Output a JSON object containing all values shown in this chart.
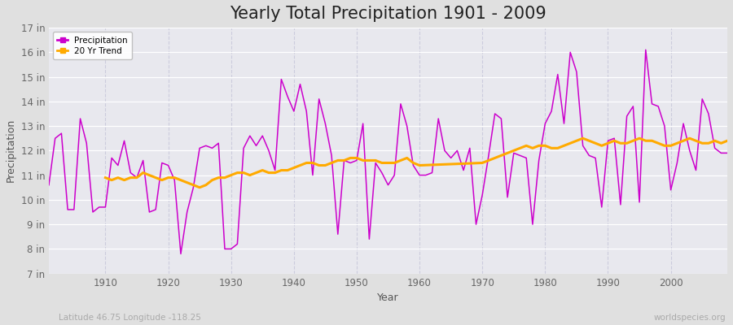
{
  "title": "Yearly Total Precipitation 1901 - 2009",
  "xlabel": "Year",
  "ylabel": "Precipitation",
  "subtitle": "Latitude 46.75 Longitude -118.25",
  "watermark": "worldspecies.org",
  "years": [
    1901,
    1902,
    1903,
    1904,
    1905,
    1906,
    1907,
    1908,
    1909,
    1910,
    1911,
    1912,
    1913,
    1914,
    1915,
    1916,
    1917,
    1918,
    1919,
    1920,
    1921,
    1922,
    1923,
    1924,
    1925,
    1926,
    1927,
    1928,
    1929,
    1930,
    1931,
    1932,
    1933,
    1934,
    1935,
    1936,
    1937,
    1938,
    1939,
    1940,
    1941,
    1942,
    1943,
    1944,
    1945,
    1946,
    1947,
    1948,
    1949,
    1950,
    1951,
    1952,
    1953,
    1954,
    1955,
    1956,
    1957,
    1958,
    1959,
    1960,
    1961,
    1962,
    1963,
    1964,
    1965,
    1966,
    1967,
    1968,
    1969,
    1970,
    1971,
    1972,
    1973,
    1974,
    1975,
    1976,
    1977,
    1978,
    1979,
    1980,
    1981,
    1982,
    1983,
    1984,
    1985,
    1986,
    1987,
    1988,
    1989,
    1990,
    1991,
    1992,
    1993,
    1994,
    1995,
    1996,
    1997,
    1998,
    1999,
    2000,
    2001,
    2002,
    2003,
    2004,
    2005,
    2006,
    2007,
    2008,
    2009
  ],
  "precip": [
    10.6,
    12.5,
    12.7,
    9.6,
    9.6,
    13.3,
    12.3,
    9.5,
    9.7,
    9.7,
    11.7,
    11.4,
    12.4,
    11.1,
    10.9,
    11.6,
    9.5,
    9.6,
    11.5,
    11.4,
    10.8,
    7.8,
    9.5,
    10.5,
    12.1,
    12.2,
    12.1,
    12.3,
    8.0,
    8.0,
    8.2,
    12.1,
    12.6,
    12.2,
    12.6,
    12.0,
    11.2,
    14.9,
    14.2,
    13.6,
    14.7,
    13.6,
    11.0,
    14.1,
    13.1,
    11.8,
    8.6,
    11.6,
    11.5,
    11.6,
    13.1,
    8.4,
    11.5,
    11.1,
    10.6,
    11.0,
    13.9,
    13.0,
    11.4,
    11.0,
    11.0,
    11.1,
    13.3,
    12.0,
    11.7,
    12.0,
    11.2,
    12.1,
    9.0,
    10.2,
    11.8,
    13.5,
    13.3,
    10.1,
    11.9,
    11.8,
    11.7,
    9.0,
    11.6,
    13.1,
    13.6,
    15.1,
    13.1,
    16.0,
    15.2,
    12.2,
    11.8,
    11.7,
    9.7,
    12.4,
    12.5,
    9.8,
    13.4,
    13.8,
    9.9,
    16.1,
    13.9,
    13.8,
    13.0,
    10.4,
    11.5,
    13.1,
    12.0,
    11.2,
    14.1,
    13.5,
    12.1,
    11.9,
    11.9
  ],
  "trend_years": [
    1910,
    1911,
    1912,
    1913,
    1914,
    1915,
    1916,
    1917,
    1918,
    1919,
    1920,
    1921,
    1922,
    1923,
    1924,
    1925,
    1926,
    1927,
    1928,
    1929,
    1930,
    1931,
    1932,
    1933,
    1934,
    1935,
    1936,
    1937,
    1938,
    1939,
    1940,
    1941,
    1942,
    1943,
    1944,
    1945,
    1946,
    1947,
    1948,
    1949,
    1950,
    1951,
    1952,
    1953,
    1954,
    1955,
    1956,
    1957,
    1958,
    1959,
    1960,
    1970,
    1971,
    1972,
    1973,
    1974,
    1975,
    1976,
    1977,
    1978,
    1979,
    1980,
    1981,
    1982,
    1983,
    1984,
    1985,
    1986,
    1987,
    1988,
    1989,
    1990,
    1991,
    1992,
    1993,
    1994,
    1995,
    1996,
    1997,
    1998,
    1999,
    2000,
    2001,
    2002,
    2003,
    2004,
    2005,
    2006,
    2007,
    2008,
    2009
  ],
  "trend": [
    10.9,
    10.8,
    10.9,
    10.8,
    10.9,
    10.9,
    11.1,
    11.0,
    10.9,
    10.8,
    10.9,
    10.9,
    10.8,
    10.7,
    10.6,
    10.5,
    10.6,
    10.8,
    10.9,
    10.9,
    11.0,
    11.1,
    11.1,
    11.0,
    11.1,
    11.2,
    11.1,
    11.1,
    11.2,
    11.2,
    11.3,
    11.4,
    11.5,
    11.5,
    11.4,
    11.4,
    11.5,
    11.6,
    11.6,
    11.7,
    11.7,
    11.6,
    11.6,
    11.6,
    11.5,
    11.5,
    11.5,
    11.6,
    11.7,
    11.5,
    11.4,
    11.5,
    11.6,
    11.7,
    11.8,
    11.9,
    12.0,
    12.1,
    12.2,
    12.1,
    12.2,
    12.2,
    12.1,
    12.1,
    12.2,
    12.3,
    12.4,
    12.5,
    12.4,
    12.3,
    12.2,
    12.3,
    12.4,
    12.3,
    12.3,
    12.4,
    12.5,
    12.4,
    12.4,
    12.3,
    12.2,
    12.2,
    12.3,
    12.4,
    12.5,
    12.4,
    12.3,
    12.3,
    12.4,
    12.3,
    12.4
  ],
  "precip_color": "#cc00cc",
  "trend_color": "#ffaa00",
  "bg_color": "#e0e0e0",
  "plot_bg_color": "#e8e8ee",
  "grid_color_h": "#ffffff",
  "grid_color_v": "#ccccdd",
  "ylim": [
    7,
    17
  ],
  "yticks": [
    7,
    8,
    9,
    10,
    11,
    12,
    13,
    14,
    15,
    16,
    17
  ],
  "xtick_positions": [
    1910,
    1920,
    1930,
    1940,
    1950,
    1960,
    1970,
    1980,
    1990,
    2000
  ],
  "title_fontsize": 15,
  "label_fontsize": 9,
  "tick_fontsize": 8.5
}
